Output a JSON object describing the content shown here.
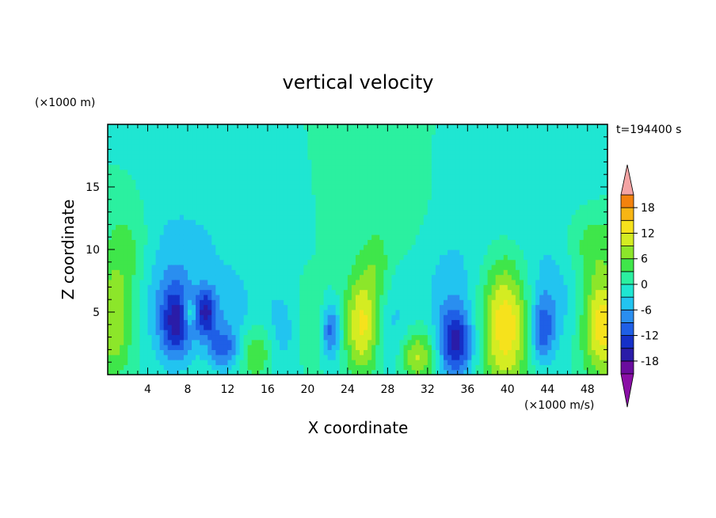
{
  "chart_data": {
    "type": "heatmap",
    "title": "vertical velocity",
    "xlabel": "X coordinate",
    "ylabel": "Z coordinate",
    "x_unit": "(×1000 m/s)",
    "y_unit": "(×1000 m)",
    "time_label": "t=194400 s",
    "xlim": [
      0,
      50
    ],
    "ylim": [
      0,
      20
    ],
    "x_ticks": [
      4,
      8,
      12,
      16,
      20,
      24,
      28,
      32,
      36,
      40,
      44,
      48
    ],
    "y_ticks": [
      5,
      10,
      15
    ],
    "colorbar": {
      "ticks": [
        18,
        12,
        6,
        0,
        -6,
        -12,
        -18
      ],
      "levels": [
        -21,
        -18,
        -15,
        -12,
        -9,
        -6,
        -3,
        0,
        3,
        6,
        9,
        12,
        15,
        18,
        21
      ],
      "colors": [
        "#6a0d9e",
        "#2a1ca8",
        "#1530c8",
        "#1f5fe6",
        "#2a8ef0",
        "#22c4f0",
        "#1fe6d2",
        "#2bf0a0",
        "#3fe64a",
        "#8ce62a",
        "#d4ec22",
        "#f6e21c",
        "#f7b514",
        "#f3820e",
        "#ef4a0c",
        "#e81c0c",
        "#f4a4a4"
      ],
      "under_color": "#8a0fa6",
      "over_color": "#f4a4a4"
    },
    "features": [
      {
        "x": 0.6,
        "z": 4.0,
        "value": 9,
        "sx": 1.4,
        "sz": 3.0
      },
      {
        "x": 2.0,
        "z": 9.5,
        "value": 6,
        "sx": 1.8,
        "sz": 3.0
      },
      {
        "x": 6.8,
        "z": 4.2,
        "value": -13,
        "sx": 1.1,
        "sz": 2.1
      },
      {
        "x": 9.8,
        "z": 5.0,
        "value": -13,
        "sx": 0.8,
        "sz": 1.3
      },
      {
        "x": 8.2,
        "z": 5.0,
        "value": 8,
        "sx": 0.5,
        "sz": 0.8
      },
      {
        "x": 5.5,
        "z": 7.0,
        "value": -5,
        "sx": 3.0,
        "sz": 4.0
      },
      {
        "x": 11.5,
        "z": 2.2,
        "value": -8,
        "sx": 1.0,
        "sz": 1.0
      },
      {
        "x": 14.8,
        "z": 1.8,
        "value": 8,
        "sx": 1.2,
        "sz": 1.6
      },
      {
        "x": 12.5,
        "z": 3.5,
        "value": -4,
        "sx": 2.0,
        "sz": 3.0
      },
      {
        "x": 17.8,
        "z": 3.5,
        "value": -5,
        "sx": 1.5,
        "sz": 2.5
      },
      {
        "x": 20.0,
        "z": 4.0,
        "value": 4,
        "sx": 1.5,
        "sz": 2.5
      },
      {
        "x": 22.3,
        "z": 3.5,
        "value": -11,
        "sx": 0.7,
        "sz": 1.6
      },
      {
        "x": 25.5,
        "z": 4.0,
        "value": 13,
        "sx": 1.2,
        "sz": 2.8
      },
      {
        "x": 27.0,
        "z": 8.5,
        "value": 4,
        "sx": 1.0,
        "sz": 2.0
      },
      {
        "x": 28.5,
        "z": 4.0,
        "value": -4,
        "sx": 1.5,
        "sz": 3.0
      },
      {
        "x": 31.0,
        "z": 1.5,
        "value": 10,
        "sx": 1.2,
        "sz": 1.5
      },
      {
        "x": 34.8,
        "z": 2.5,
        "value": -15,
        "sx": 1.2,
        "sz": 2.0
      },
      {
        "x": 34.0,
        "z": 7.0,
        "value": -4,
        "sx": 2.0,
        "sz": 3.0
      },
      {
        "x": 39.8,
        "z": 4.0,
        "value": 15,
        "sx": 1.6,
        "sz": 3.6
      },
      {
        "x": 43.5,
        "z": 3.5,
        "value": -10,
        "sx": 0.8,
        "sz": 1.8
      },
      {
        "x": 44.5,
        "z": 6.0,
        "value": -4,
        "sx": 2.0,
        "sz": 3.0
      },
      {
        "x": 49.5,
        "z": 4.0,
        "value": 14,
        "sx": 1.4,
        "sz": 3.0
      },
      {
        "x": 48.5,
        "z": 10.5,
        "value": 5,
        "sx": 2.0,
        "sz": 2.0
      },
      {
        "x": 14.0,
        "z": 13.0,
        "value": -3,
        "sx": 6.0,
        "sz": 5.0
      },
      {
        "x": 26.0,
        "z": 14.0,
        "value": 2,
        "sx": 8.0,
        "sz": 5.0
      },
      {
        "x": 40.0,
        "z": 14.0,
        "value": -3,
        "sx": 6.0,
        "sz": 5.0
      }
    ]
  }
}
